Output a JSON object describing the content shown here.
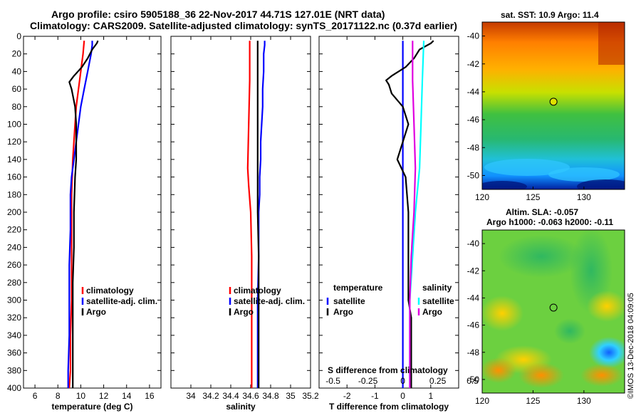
{
  "header": {
    "line1": "Argo profile: csiro 5905188_36 22-Nov-2017 44.71S 127.01E (NRT data)",
    "line2": "Climatology: CARS2009. Satellite-adjusted climatology: synTS_20171122.nc (0.37d earlier)"
  },
  "watermark": "©IMOS 13-Dec-2018 04:09:05",
  "colors": {
    "climatology": "#ff0000",
    "satellite": "#0000ff",
    "argo": "#000000",
    "s_sat": "#00ffff",
    "s_argo": "#e000e0"
  },
  "chart_data": [
    {
      "type": "line",
      "id": "temperature",
      "xlabel": "temperature (deg C)",
      "xlim": [
        5,
        17
      ],
      "xticks": [
        6,
        8,
        10,
        12,
        14,
        16
      ],
      "ylim": [
        0,
        400
      ],
      "yticks": [
        0,
        20,
        40,
        60,
        80,
        100,
        120,
        140,
        160,
        180,
        200,
        220,
        240,
        260,
        280,
        300,
        320,
        340,
        360,
        380,
        400
      ],
      "legend": [
        "climatology",
        "satellite-adj. clim.",
        "Argo"
      ],
      "series": [
        {
          "name": "climatology",
          "color": "#ff0000",
          "depth": [
            5,
            20,
            40,
            60,
            80,
            100,
            140,
            180,
            220,
            260,
            300,
            340,
            380,
            400
          ],
          "values": [
            10.3,
            10.2,
            10.0,
            9.8,
            9.6,
            9.5,
            9.3,
            9.2,
            9.2,
            9.2,
            9.2,
            9.1,
            9.1,
            9.0
          ]
        },
        {
          "name": "satellite-adj. clim.",
          "color": "#0000ff",
          "depth": [
            5,
            10,
            20,
            40,
            60,
            80,
            100,
            120,
            140,
            160,
            180,
            220,
            260,
            300,
            340,
            380,
            400
          ],
          "values": [
            11.0,
            11.0,
            10.9,
            10.6,
            10.3,
            10.0,
            9.8,
            9.6,
            9.4,
            9.2,
            9.1,
            9.1,
            9.0,
            9.0,
            9.0,
            8.9,
            8.9
          ]
        },
        {
          "name": "Argo",
          "color": "#000000",
          "depth": [
            5,
            8,
            15,
            25,
            35,
            45,
            52,
            60,
            80,
            100,
            140,
            160,
            200,
            240,
            280,
            320,
            360,
            400
          ],
          "values": [
            11.5,
            11.4,
            11.0,
            10.6,
            10.1,
            9.4,
            9.0,
            9.2,
            9.5,
            9.6,
            9.6,
            9.5,
            9.4,
            9.4,
            9.3,
            9.3,
            9.3,
            9.3
          ]
        }
      ]
    },
    {
      "type": "line",
      "id": "salinity",
      "xlabel": "salinity",
      "xlim": [
        33.8,
        35.2
      ],
      "xticks": [
        34,
        34.2,
        34.4,
        34.6,
        34.8,
        35,
        35.2
      ],
      "ylim": [
        0,
        400
      ],
      "legend": [
        "climatology",
        "satellite-adj. clim.",
        "Argo"
      ],
      "series": [
        {
          "name": "climatology",
          "color": "#ff0000",
          "depth": [
            5,
            50,
            100,
            150,
            170,
            200,
            250,
            300,
            350,
            400
          ],
          "values": [
            34.59,
            34.59,
            34.58,
            34.57,
            34.58,
            34.6,
            34.61,
            34.61,
            34.61,
            34.61
          ]
        },
        {
          "name": "satellite-adj. clim.",
          "color": "#0000ff",
          "depth": [
            5,
            10,
            20,
            40,
            60,
            80,
            100,
            120,
            140,
            160,
            180,
            200,
            250,
            300,
            350,
            400
          ],
          "values": [
            34.74,
            34.74,
            34.73,
            34.73,
            34.72,
            34.72,
            34.71,
            34.7,
            34.7,
            34.69,
            34.69,
            34.68,
            34.68,
            34.67,
            34.67,
            34.67
          ]
        },
        {
          "name": "Argo",
          "color": "#000000",
          "depth": [
            5,
            50,
            100,
            150,
            200,
            250,
            300,
            350,
            400
          ],
          "values": [
            34.67,
            34.67,
            34.67,
            34.67,
            34.67,
            34.68,
            34.68,
            34.68,
            34.68
          ]
        }
      ]
    },
    {
      "type": "line",
      "id": "difference",
      "xlabel": "T difference from climatology",
      "top_xlabel": "S difference from climatology",
      "xlim": [
        -3,
        2
      ],
      "xticks": [
        -2,
        -1,
        0,
        1
      ],
      "xticklabels": [
        "-2",
        "-1",
        "0",
        "1"
      ],
      "top_xticks": [
        -2.5,
        -1.25,
        0,
        1.25,
        2.5
      ],
      "top_xticklabels": [
        "-0.5",
        "-0.25",
        "0",
        "0.25",
        "0.5"
      ],
      "ylim": [
        0,
        400
      ],
      "legend_temperature_title": "temperature",
      "legend_salinity_title": "salinity",
      "legend_temperature": [
        "satellite",
        "Argo"
      ],
      "legend_salinity": [
        "satellite",
        "Argo"
      ],
      "series": [
        {
          "name": "T satellite",
          "color": "#0000ff",
          "depth": [
            5,
            100,
            200,
            300,
            400
          ],
          "values": [
            0.0,
            0.0,
            0.0,
            0.0,
            0.0
          ]
        },
        {
          "name": "T Argo",
          "color": "#000000",
          "depth": [
            5,
            8,
            15,
            25,
            35,
            45,
            50,
            55,
            65,
            80,
            100,
            120,
            140,
            160,
            200,
            240,
            280,
            300,
            320,
            360,
            400
          ],
          "values": [
            1.1,
            1.0,
            0.6,
            0.4,
            0.1,
            -0.4,
            -0.6,
            -0.5,
            -0.4,
            0.0,
            0.2,
            0.0,
            -0.2,
            0.1,
            0.2,
            0.2,
            0.2,
            0.2,
            0.3,
            0.3,
            0.3
          ]
        },
        {
          "name": "S satellite",
          "color": "#00ffff",
          "depth": [
            5,
            50,
            100,
            150,
            200,
            250,
            300,
            400
          ],
          "values": [
            0.75,
            0.7,
            0.65,
            0.6,
            0.45,
            0.35,
            0.25,
            0.25
          ]
        },
        {
          "name": "S Argo",
          "color": "#e000e0",
          "depth": [
            5,
            50,
            100,
            150,
            200,
            250,
            300,
            400
          ],
          "values": [
            0.35,
            0.35,
            0.4,
            0.45,
            0.4,
            0.3,
            0.25,
            0.25
          ]
        }
      ]
    },
    {
      "type": "heatmap",
      "id": "sst_map",
      "title": "sat. SST: 10.9 Argo: 11.4",
      "xlim": [
        120,
        134
      ],
      "ylim": [
        -51,
        -39
      ],
      "xticks": [
        120,
        125,
        130
      ],
      "yticks": [
        -40,
        -42,
        -44,
        -46,
        -48,
        -50
      ],
      "marker": {
        "lon": 127.01,
        "lat": -44.71
      }
    },
    {
      "type": "heatmap",
      "id": "sla_map",
      "title_line1": "Altim. SLA: -0.057",
      "title_line2": "Argo h1000: -0.063 h2000: -0.11",
      "xlim": [
        120,
        134
      ],
      "ylim": [
        -51,
        -39
      ],
      "xticks": [
        120,
        125,
        130
      ],
      "yticks": [
        -40,
        -42,
        -44,
        -46,
        -48,
        -50
      ],
      "marker": {
        "lon": 127.01,
        "lat": -44.71
      }
    }
  ]
}
